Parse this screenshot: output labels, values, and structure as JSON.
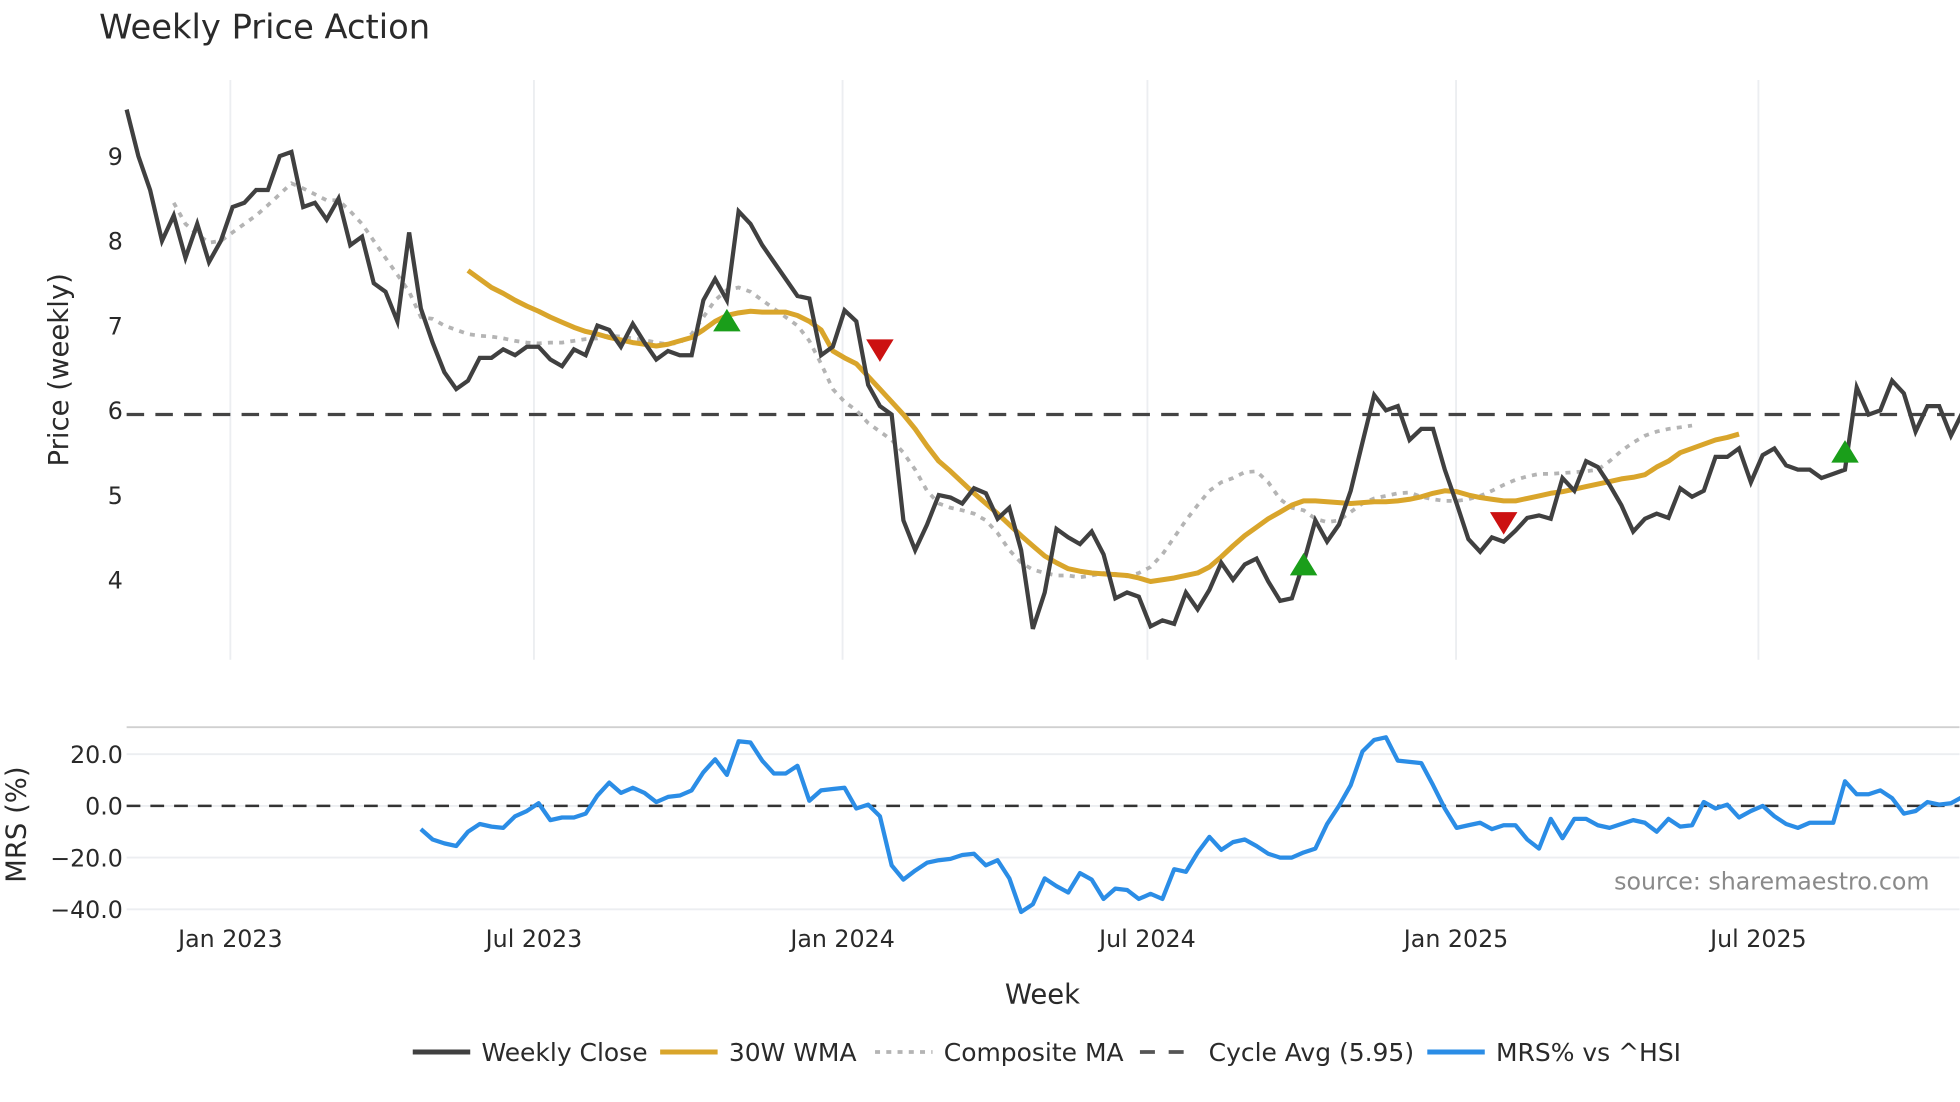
{
  "chart_data": {
    "type": "line",
    "title": "Weekly Price Action",
    "xlabel": "Week",
    "x_ticks": [
      "Jan 2023",
      "Jul 2023",
      "Jan 2024",
      "Jul 2024",
      "Jan 2025",
      "Jul 2025"
    ],
    "x_start_week": "2022-11-04",
    "x_step": "1 week",
    "panels": [
      {
        "name": "price",
        "ylabel": "Price (weekly)",
        "y_ticks": [
          "9",
          "8",
          "7",
          "6",
          "5",
          "4"
        ],
        "ylim": [
          3.1,
          9.9
        ],
        "grid": "vertical",
        "series": [
          {
            "name": "Weekly Close",
            "color": "#404040",
            "style": "solid",
            "start_index": 0,
            "values": [
              9.55,
              9.0,
              8.6,
              8.0,
              8.3,
              7.8,
              8.2,
              7.75,
              8.0,
              8.4,
              8.45,
              8.6,
              8.6,
              9.0,
              9.05,
              8.4,
              8.45,
              8.25,
              8.5,
              7.95,
              8.05,
              7.5,
              7.4,
              7.05,
              8.1,
              7.2,
              6.8,
              6.45,
              6.25,
              6.35,
              6.62,
              6.62,
              6.72,
              6.65,
              6.75,
              6.75,
              6.6,
              6.52,
              6.72,
              6.65,
              7.0,
              6.95,
              6.75,
              7.02,
              6.8,
              6.6,
              6.7,
              6.65,
              6.65,
              7.3,
              7.55,
              7.3,
              8.35,
              8.2,
              7.95,
              7.75,
              7.55,
              7.35,
              7.32,
              6.65,
              6.75,
              7.18,
              7.05,
              6.3,
              6.05,
              5.95,
              4.7,
              4.35,
              4.65,
              5.0,
              4.97,
              4.9,
              5.08,
              5.02,
              4.72,
              4.85,
              4.35,
              3.42,
              3.85,
              4.6,
              4.5,
              4.42,
              4.57,
              4.3,
              3.78,
              3.85,
              3.8,
              3.45,
              3.52,
              3.48,
              3.85,
              3.65,
              3.88,
              4.2,
              4.0,
              4.18,
              4.25,
              3.98,
              3.75,
              3.78,
              4.2,
              4.7,
              4.45,
              4.65,
              5.05,
              5.62,
              6.18,
              6.0,
              6.05,
              5.65,
              5.78,
              5.78,
              5.3,
              4.9,
              4.48,
              4.33,
              4.5,
              4.45,
              4.58,
              4.73,
              4.76,
              4.72,
              5.2,
              5.05,
              5.4,
              5.33,
              5.12,
              4.88,
              4.57,
              4.72,
              4.78,
              4.73,
              5.08,
              4.98,
              5.05,
              5.45,
              5.45,
              5.55,
              5.15,
              5.47,
              5.55,
              5.35,
              5.3,
              5.3,
              5.2,
              5.25,
              5.3,
              6.27,
              5.95,
              6.0,
              6.35,
              6.2,
              5.75,
              6.05,
              6.05,
              5.7,
              5.98,
              6.15
            ]
          },
          {
            "name": "30W WMA",
            "color": "#d9a52b",
            "style": "solid",
            "start_index": 29,
            "values": [
              7.65,
              7.55,
              7.45,
              7.38,
              7.3,
              7.23,
              7.17,
              7.1,
              7.04,
              6.98,
              6.93,
              6.9,
              6.86,
              6.83,
              6.8,
              6.78,
              6.76,
              6.78,
              6.82,
              6.86,
              6.95,
              7.05,
              7.12,
              7.15,
              7.17,
              7.16,
              7.16,
              7.16,
              7.12,
              7.05,
              6.95,
              6.7,
              6.62,
              6.55,
              6.4,
              6.25,
              6.1,
              5.95,
              5.78,
              5.58,
              5.4,
              5.28,
              5.15,
              5.02,
              4.9,
              4.78,
              4.65,
              4.52,
              4.4,
              4.28,
              4.2,
              4.13,
              4.1,
              4.08,
              4.07,
              4.06,
              4.05,
              4.02,
              3.98,
              4.0,
              4.02,
              4.05,
              4.08,
              4.15,
              4.27,
              4.4,
              4.52,
              4.62,
              4.72,
              4.8,
              4.88,
              4.93,
              4.93,
              4.92,
              4.91,
              4.9,
              4.91,
              4.92,
              4.92,
              4.93,
              4.95,
              4.98,
              5.02,
              5.05,
              5.04,
              5.0,
              4.97,
              4.95,
              4.93,
              4.93,
              4.96,
              4.99,
              5.02,
              5.04,
              5.07,
              5.1,
              5.13,
              5.16,
              5.19,
              5.21,
              5.24,
              5.33,
              5.4,
              5.5,
              5.55,
              5.6,
              5.65,
              5.68,
              5.72
            ]
          },
          {
            "name": "Composite MA",
            "color": "#b4b4b4",
            "style": "dotted",
            "start_index": 4,
            "values": [
              8.45,
              8.2,
              8.08,
              7.98,
              8.0,
              8.1,
              8.2,
              8.3,
              8.42,
              8.55,
              8.68,
              8.62,
              8.55,
              8.48,
              8.48,
              8.35,
              8.2,
              8.0,
              7.8,
              7.6,
              7.4,
              7.1,
              7.08,
              7.0,
              6.95,
              6.9,
              6.88,
              6.87,
              6.85,
              6.82,
              6.8,
              6.79,
              6.8,
              6.8,
              6.82,
              6.84,
              6.85,
              6.88,
              6.87,
              6.85,
              6.83,
              6.8,
              6.78,
              6.8,
              6.9,
              7.1,
              7.3,
              7.42,
              7.45,
              7.4,
              7.3,
              7.2,
              7.1,
              7.0,
              6.82,
              6.55,
              6.25,
              6.1,
              6.0,
              5.85,
              5.75,
              5.65,
              5.5,
              5.3,
              5.05,
              4.9,
              4.85,
              4.82,
              4.78,
              4.7,
              4.55,
              4.35,
              4.2,
              4.12,
              4.08,
              4.05,
              4.05,
              4.03,
              4.05,
              4.08,
              4.07,
              4.04,
              4.08,
              4.15,
              4.3,
              4.5,
              4.7,
              4.88,
              5.05,
              5.15,
              5.2,
              5.27,
              5.28,
              5.15,
              4.95,
              4.85,
              4.82,
              4.72,
              4.68,
              4.7,
              4.8,
              4.9,
              4.96,
              4.99,
              5.02,
              5.03,
              4.98,
              4.95,
              4.93,
              4.93,
              4.95,
              4.99,
              5.05,
              5.12,
              5.18,
              5.22,
              5.25,
              5.25,
              5.26,
              5.27,
              5.28,
              5.3,
              5.4,
              5.52,
              5.62,
              5.7,
              5.75,
              5.78,
              5.8,
              5.82
            ]
          },
          {
            "name": "Cycle Avg (5.95)",
            "color": "#444444",
            "style": "dashed",
            "value": 5.95
          }
        ],
        "markers": [
          {
            "type": "buy",
            "shape": "triangle-up",
            "color": "#1a9e1a",
            "index": 51,
            "value": 7.05
          },
          {
            "type": "sell",
            "shape": "triangle-down",
            "color": "#cc1111",
            "index": 64,
            "value": 6.72
          },
          {
            "type": "buy",
            "shape": "triangle-up",
            "color": "#1a9e1a",
            "index": 100,
            "value": 4.17
          },
          {
            "type": "sell",
            "shape": "triangle-down",
            "color": "#cc1111",
            "index": 117,
            "value": 4.68
          },
          {
            "type": "buy",
            "shape": "triangle-up",
            "color": "#1a9e1a",
            "index": 146,
            "value": 5.5
          }
        ]
      },
      {
        "name": "mrs",
        "ylabel": "MRS (%)",
        "y_ticks": [
          "20.0",
          "0.0",
          "−20.0",
          "−40.0"
        ],
        "ylim": [
          -45,
          32
        ],
        "grid": "horizontal",
        "series": [
          {
            "name": "MRS% vs ^HSI",
            "color": "#2b8de6",
            "style": "solid",
            "start_index": 25,
            "values": [
              -9,
              -13,
              -14.5,
              -15.5,
              -10,
              -7,
              -8,
              -8.5,
              -4,
              -2,
              1,
              -5.5,
              -4.5,
              -4.5,
              -3,
              4,
              9,
              5,
              7,
              5,
              1.5,
              3.5,
              4,
              6,
              13,
              18,
              12,
              25,
              24.5,
              17.5,
              12.5,
              12.5,
              15.5,
              2,
              6,
              6.5,
              7,
              -1,
              0.5,
              -4,
              -23,
              -28.5,
              -25,
              -22,
              -21,
              -20.5,
              -19,
              -18.5,
              -23,
              -21,
              -28,
              -41,
              -38,
              -28,
              -31,
              -33.5,
              -26,
              -28.5,
              -36,
              -32,
              -32.5,
              -36,
              -34,
              -36,
              -24.5,
              -25.5,
              -18,
              -12,
              -17,
              -14,
              -13,
              -15.5,
              -18.5,
              -20,
              -20,
              -18,
              -16.5,
              -7,
              0,
              8,
              21,
              25.5,
              26.5,
              17.5,
              17,
              16.5,
              8,
              -1,
              -8.5,
              -7.5,
              -6.5,
              -9,
              -7.5,
              -7.5,
              -13,
              -16.5,
              -5,
              -12.5,
              -5,
              -5,
              -7.5,
              -8.5,
              -7,
              -5.5,
              -6.5,
              -10,
              -5,
              -8,
              -7.5,
              1.5,
              -1,
              0.5,
              -4.5,
              -2,
              0,
              -4,
              -7,
              -8.5,
              -6.5,
              -6.5,
              -6.5,
              9.5,
              4.5,
              4.5,
              6,
              3,
              -3,
              -2,
              1.5,
              0.5,
              1,
              3.5
            ]
          },
          {
            "name": "Zero line",
            "color": "#333333",
            "style": "dashed",
            "value": 0
          }
        ],
        "annotation": "source: sharemaestro.com"
      }
    ],
    "legend": {
      "position": "bottom",
      "entries": [
        {
          "label": "Weekly Close",
          "color": "#404040",
          "style": "solid"
        },
        {
          "label": "30W WMA",
          "color": "#d9a52b",
          "style": "solid"
        },
        {
          "label": "Composite MA",
          "color": "#b4b4b4",
          "style": "dotted"
        },
        {
          "label": "Cycle Avg (5.95)",
          "color": "#555555",
          "style": "dashed"
        },
        {
          "label": "MRS% vs ^HSI",
          "color": "#2b8de6",
          "style": "solid"
        }
      ]
    }
  }
}
